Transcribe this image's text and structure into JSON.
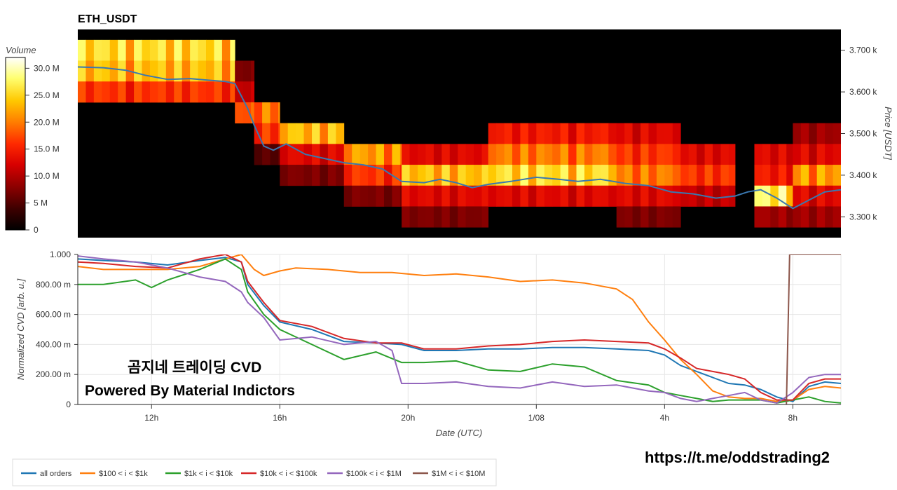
{
  "colors": {
    "all_orders": "#1f77b4",
    "100_1k": "#ff7f0e",
    "1k_10k": "#2ca02c",
    "10k_100k": "#d62728",
    "100k_1m": "#9467bd",
    "1m_10m": "#8c564b",
    "price_line": "#3a78b0",
    "heat_stops": [
      "#000000",
      "#3c0000",
      "#8c0000",
      "#d80000",
      "#ff2a00",
      "#ff7a00",
      "#ffc800",
      "#ffff70",
      "#ffffff"
    ]
  },
  "chart_data": [
    {
      "type": "heatmap",
      "title": "ETH_USDT",
      "ylabel": "Price [USDT]",
      "colorbar": {
        "label": "Volume",
        "ticks": [
          "0",
          "5 M",
          "10.0 M",
          "15.0 M",
          "20.0 M",
          "25.0 M",
          "30.0 M"
        ],
        "range": [
          0,
          32000000
        ]
      },
      "yticks": [
        "3.300 k",
        "3.400 k",
        "3.500 k",
        "3.600 k",
        "3.700 k"
      ],
      "y_values": [
        3300,
        3400,
        3500,
        3600,
        3700
      ],
      "ylim": [
        3250,
        3750
      ],
      "x_hours_range": [
        9.7,
        33.5
      ],
      "price_bin_size": 50,
      "volume_bands": [
        {
          "start": 9.7,
          "end": 14.6,
          "bins": [
            {
              "price": 3700,
              "v": 28
            },
            {
              "price": 3650,
              "v": 26
            },
            {
              "price": 3600,
              "v": 18
            }
          ]
        },
        {
          "start": 14.6,
          "end": 15.2,
          "bins": [
            {
              "price": 3650,
              "v": 8
            },
            {
              "price": 3600,
              "v": 12
            },
            {
              "price": 3550,
              "v": 20
            }
          ]
        },
        {
          "start": 15.2,
          "end": 16.0,
          "bins": [
            {
              "price": 3550,
              "v": 22
            },
            {
              "price": 3500,
              "v": 18
            },
            {
              "price": 3450,
              "v": 6
            }
          ]
        },
        {
          "start": 16.0,
          "end": 18.0,
          "bins": [
            {
              "price": 3500,
              "v": 26
            },
            {
              "price": 3450,
              "v": 14
            },
            {
              "price": 3400,
              "v": 8
            }
          ]
        },
        {
          "start": 18.0,
          "end": 19.8,
          "bins": [
            {
              "price": 3450,
              "v": 24
            },
            {
              "price": 3400,
              "v": 18
            },
            {
              "price": 3350,
              "v": 8
            }
          ]
        },
        {
          "start": 19.8,
          "end": 22.5,
          "bins": [
            {
              "price": 3450,
              "v": 14
            },
            {
              "price": 3400,
              "v": 26
            },
            {
              "price": 3350,
              "v": 14
            },
            {
              "price": 3300,
              "v": 8
            }
          ]
        },
        {
          "start": 22.5,
          "end": 26.5,
          "bins": [
            {
              "price": 3500,
              "v": 16
            },
            {
              "price": 3450,
              "v": 22
            },
            {
              "price": 3400,
              "v": 28
            },
            {
              "price": 3350,
              "v": 14
            }
          ]
        },
        {
          "start": 26.5,
          "end": 28.5,
          "bins": [
            {
              "price": 3500,
              "v": 14
            },
            {
              "price": 3450,
              "v": 18
            },
            {
              "price": 3400,
              "v": 22
            },
            {
              "price": 3350,
              "v": 14
            },
            {
              "price": 3300,
              "v": 8
            }
          ]
        },
        {
          "start": 28.5,
          "end": 30.2,
          "bins": [
            {
              "price": 3450,
              "v": 14
            },
            {
              "price": 3400,
              "v": 18
            },
            {
              "price": 3350,
              "v": 12
            }
          ]
        },
        {
          "start": 30.2,
          "end": 30.8,
          "bins": []
        },
        {
          "start": 30.8,
          "end": 32.0,
          "bins": [
            {
              "price": 3450,
              "v": 14
            },
            {
              "price": 3400,
              "v": 16
            },
            {
              "price": 3350,
              "v": 30
            },
            {
              "price": 3300,
              "v": 10
            }
          ]
        },
        {
          "start": 32.0,
          "end": 33.5,
          "bins": [
            {
              "price": 3500,
              "v": 10
            },
            {
              "price": 3450,
              "v": 14
            },
            {
              "price": 3400,
              "v": 24
            },
            {
              "price": 3350,
              "v": 14
            },
            {
              "price": 3300,
              "v": 10
            }
          ]
        }
      ],
      "price_series": {
        "name": "",
        "x": [
          9.7,
          10.5,
          11.2,
          11.8,
          12.5,
          13.2,
          13.8,
          14.3,
          14.6,
          14.8,
          15.0,
          15.2,
          15.5,
          15.8,
          16.2,
          16.8,
          17.4,
          18.0,
          18.6,
          19.2,
          19.8,
          20.5,
          21.0,
          21.5,
          22.0,
          22.5,
          23.2,
          24.0,
          24.7,
          25.3,
          26.0,
          26.8,
          27.5,
          28.2,
          28.9,
          29.6,
          30.2,
          30.6,
          31.0,
          31.5,
          32.0,
          32.5,
          33.0,
          33.5
        ],
        "y": [
          3660,
          3658,
          3652,
          3640,
          3630,
          3632,
          3628,
          3625,
          3620,
          3590,
          3560,
          3520,
          3470,
          3460,
          3475,
          3450,
          3440,
          3430,
          3425,
          3415,
          3385,
          3382,
          3390,
          3382,
          3370,
          3378,
          3385,
          3395,
          3390,
          3385,
          3390,
          3380,
          3375,
          3360,
          3355,
          3345,
          3350,
          3360,
          3365,
          3345,
          3320,
          3340,
          3360,
          3365
        ]
      }
    },
    {
      "type": "line",
      "xlabel": "Date (UTC)",
      "ylabel": "Normalized CVD [arb. u.]",
      "ylim": [
        0,
        1
      ],
      "yticks": [
        "0",
        "200.00 m",
        "400.00 m",
        "600.00 m",
        "800.00 m",
        "1.000"
      ],
      "ytick_values": [
        0,
        0.2,
        0.4,
        0.6,
        0.8,
        1.0
      ],
      "xticks": [
        "12h",
        "16h",
        "20h",
        "1/08",
        "4h",
        "8h"
      ],
      "xtick_hours": [
        12,
        16,
        20,
        24,
        28,
        32
      ],
      "xlim_hours": [
        9.7,
        33.5
      ],
      "series": [
        {
          "name": "all orders",
          "x": [
            9.7,
            10.5,
            11.5,
            12.5,
            13.5,
            14.3,
            14.8,
            15.0,
            15.5,
            16.0,
            17.0,
            18.0,
            19.0,
            19.8,
            20.5,
            21.5,
            22.5,
            23.5,
            24.5,
            25.5,
            26.5,
            27.5,
            28.0,
            28.5,
            29.0,
            29.5,
            30.0,
            30.5,
            31.0,
            31.5,
            32.0,
            32.5,
            33.0,
            33.5
          ],
          "y": [
            0.97,
            0.96,
            0.95,
            0.93,
            0.96,
            0.98,
            0.95,
            0.8,
            0.66,
            0.55,
            0.5,
            0.42,
            0.41,
            0.4,
            0.36,
            0.36,
            0.37,
            0.37,
            0.38,
            0.38,
            0.37,
            0.36,
            0.33,
            0.26,
            0.22,
            0.18,
            0.14,
            0.13,
            0.1,
            0.05,
            0.02,
            0.12,
            0.15,
            0.14
          ]
        },
        {
          "name": "$100 < i < $1k",
          "x": [
            9.7,
            10.5,
            11.5,
            12.5,
            13.5,
            14.3,
            14.8,
            15.2,
            15.5,
            16.0,
            16.5,
            17.5,
            18.5,
            19.5,
            20.5,
            21.5,
            22.5,
            23.5,
            24.5,
            25.5,
            26.5,
            27.0,
            27.5,
            28.0,
            28.5,
            29.0,
            29.5,
            30.0,
            30.5,
            31.0,
            31.5,
            32.0,
            32.5,
            33.0,
            33.5
          ],
          "y": [
            0.92,
            0.9,
            0.9,
            0.9,
            0.92,
            0.97,
            1.0,
            0.9,
            0.86,
            0.89,
            0.91,
            0.9,
            0.88,
            0.88,
            0.86,
            0.87,
            0.85,
            0.82,
            0.83,
            0.81,
            0.77,
            0.7,
            0.55,
            0.43,
            0.3,
            0.2,
            0.09,
            0.05,
            0.04,
            0.04,
            0.02,
            0.03,
            0.1,
            0.12,
            0.11
          ]
        },
        {
          "name": "$1k < i < $10k",
          "x": [
            9.7,
            10.5,
            11.5,
            12.0,
            12.5,
            13.5,
            14.3,
            14.8,
            15.0,
            15.5,
            16.0,
            17.0,
            18.0,
            19.0,
            19.8,
            20.5,
            21.5,
            22.5,
            23.5,
            24.5,
            25.5,
            26.5,
            27.5,
            28.0,
            28.5,
            29.0,
            29.5,
            30.0,
            30.5,
            31.0,
            31.5,
            32.0,
            32.5,
            33.0,
            33.5
          ],
          "y": [
            0.8,
            0.8,
            0.83,
            0.78,
            0.83,
            0.9,
            0.97,
            0.9,
            0.75,
            0.6,
            0.5,
            0.4,
            0.3,
            0.35,
            0.28,
            0.28,
            0.29,
            0.23,
            0.22,
            0.27,
            0.25,
            0.16,
            0.13,
            0.08,
            0.06,
            0.04,
            0.02,
            0.03,
            0.03,
            0.03,
            0.01,
            0.03,
            0.05,
            0.02,
            0.01
          ]
        },
        {
          "name": "$10k < i < $100k",
          "x": [
            9.7,
            10.5,
            11.5,
            12.5,
            13.5,
            14.3,
            14.8,
            15.0,
            15.5,
            16.0,
            17.0,
            18.0,
            19.0,
            19.8,
            20.5,
            21.5,
            22.5,
            23.5,
            24.5,
            25.5,
            26.5,
            27.5,
            28.0,
            28.5,
            29.0,
            29.5,
            30.0,
            30.5,
            31.0,
            31.5,
            32.0,
            32.5,
            33.0,
            33.5
          ],
          "y": [
            0.95,
            0.94,
            0.92,
            0.91,
            0.97,
            1.0,
            0.95,
            0.82,
            0.68,
            0.56,
            0.52,
            0.44,
            0.41,
            0.41,
            0.37,
            0.37,
            0.39,
            0.4,
            0.42,
            0.43,
            0.42,
            0.41,
            0.37,
            0.31,
            0.24,
            0.22,
            0.2,
            0.17,
            0.08,
            0.03,
            0.03,
            0.14,
            0.17,
            0.17
          ]
        },
        {
          "name": "$100k < i < $1M",
          "x": [
            9.7,
            10.5,
            11.5,
            12.0,
            12.5,
            13.5,
            14.3,
            14.8,
            15.0,
            15.5,
            16.0,
            17.0,
            18.0,
            19.0,
            19.5,
            19.8,
            20.5,
            21.5,
            22.5,
            23.5,
            24.5,
            25.5,
            26.5,
            27.5,
            28.0,
            28.5,
            29.0,
            29.5,
            30.0,
            30.5,
            31.0,
            31.5,
            32.0,
            32.5,
            33.0,
            33.5
          ],
          "y": [
            0.99,
            0.97,
            0.95,
            0.93,
            0.91,
            0.85,
            0.82,
            0.75,
            0.68,
            0.58,
            0.43,
            0.45,
            0.4,
            0.42,
            0.36,
            0.14,
            0.14,
            0.15,
            0.12,
            0.11,
            0.15,
            0.12,
            0.13,
            0.09,
            0.08,
            0.04,
            0.02,
            0.04,
            0.06,
            0.08,
            0.03,
            0.01,
            0.08,
            0.18,
            0.2,
            0.2
          ]
        },
        {
          "name": "$1M < i < $10M",
          "x": [
            31.8,
            31.9,
            33.5
          ],
          "y": [
            0.0,
            1.0,
            1.0
          ]
        }
      ]
    }
  ],
  "overlay": {
    "title": "곰지네 트레이딩 CVD",
    "subtitle": "Powered By Material Indictors"
  },
  "link": "https://t.me/oddstrading2",
  "legend_items": [
    "all orders",
    "$100 < i < $1k",
    "$1k < i < $10k",
    "$10k < i < $100k",
    "$100k < i < $1M",
    "$1M < i < $10M"
  ]
}
